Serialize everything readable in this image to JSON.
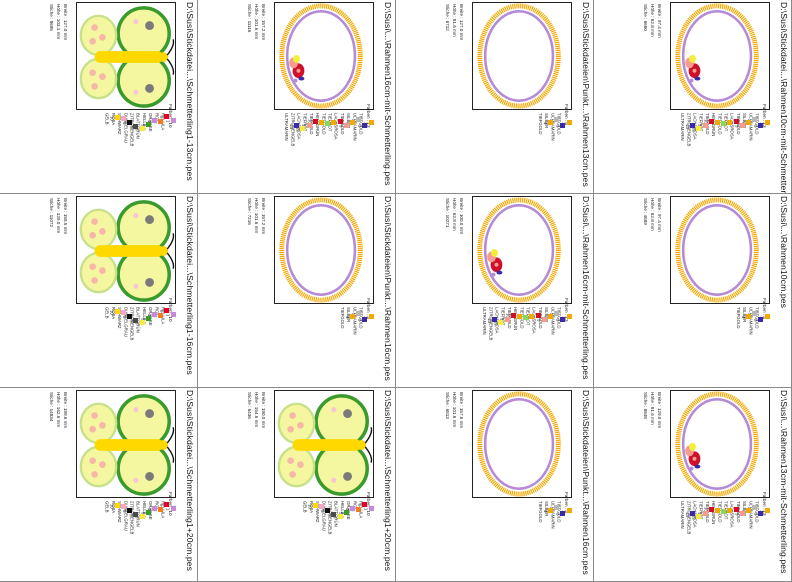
{
  "cards": [
    {
      "title": "D:\\Susi\\Stickdatei...\\Rahmen10cm-mit-Schmetterling.pes",
      "info": [
        "Breite : 97.4 mm",
        "Höhe : 62.8 mm",
        "Stiche : 6680"
      ],
      "design": "oval-butterfly",
      "colors_label": "Farben : 13",
      "legend": [
        {
          "num": "1",
          "name": "TIEFGOLD",
          "color": "#f2a900"
        },
        {
          "num": "2",
          "name": "ULTRAMARIN",
          "color": "#3b2aa8"
        },
        {
          "num": "3",
          "name": "SILBER",
          "color": "#b8b8b8"
        },
        {
          "num": "4",
          "name": "TIEFGOLD",
          "color": "#f2a900"
        },
        {
          "num": "5",
          "name": "LACHSROSA",
          "color": "#f59c8f"
        },
        {
          "num": "6",
          "name": "TIEFROT",
          "color": "#d0102a"
        },
        {
          "num": "7",
          "name": "TIEFGOLD",
          "color": "#f2a900"
        },
        {
          "num": "8",
          "name": "HELLGRÜN",
          "color": "#86d95a"
        },
        {
          "num": "9",
          "name": "TIEFGOLD",
          "color": "#f2a900"
        },
        {
          "num": "10",
          "name": "TIEFROT",
          "color": "#d0102a"
        },
        {
          "num": "11",
          "name": "LACHSROSA",
          "color": "#f59c8f"
        },
        {
          "num": "12",
          "name": "ZITRONENGELB",
          "color": "#f4ee3a"
        },
        {
          "num": "13",
          "name": "ULTRAMARIN",
          "color": "#3b2aa8"
        }
      ]
    },
    {
      "title": "D:\\Susi\\Stickdateien\\Punkt...\\Rahmen13cm.pes",
      "info": [
        "Breite : 127.0 mm",
        "Höhe : 81.6 mm",
        "Stiche : 6712"
      ],
      "design": "oval",
      "colors_label": "Farben : 4",
      "legend": [
        {
          "num": "1",
          "name": "TIEFGOLD",
          "color": "#f2a900"
        },
        {
          "num": "2",
          "name": "ULTRAMARIN",
          "color": "#3b2aa8"
        },
        {
          "num": "3",
          "name": "SILBER",
          "color": "#b8b8b8"
        },
        {
          "num": "4",
          "name": "TIEFGOLD",
          "color": "#f2a900"
        }
      ]
    },
    {
      "title": "D:\\Susi\\...\\Rahmen16cm-mit-Schmetterling.pes",
      "info": [
        "Breite : 157.2 mm",
        "Höhe : 101.6 mm",
        "Stiche : 11116"
      ],
      "design": "oval-butterfly",
      "colors_label": "Farben : 13",
      "legend": [
        {
          "num": "1",
          "name": "TIEFGOLD",
          "color": "#f2a900"
        },
        {
          "num": "2",
          "name": "ULTRAMARIN",
          "color": "#3b2aa8"
        },
        {
          "num": "3",
          "name": "SILBER",
          "color": "#b8b8b8"
        },
        {
          "num": "4",
          "name": "TIEFGOLD",
          "color": "#f2a900"
        },
        {
          "num": "5",
          "name": "LACHSROSA",
          "color": "#f59c8f"
        },
        {
          "num": "6",
          "name": "TIEFROT",
          "color": "#d0102a"
        },
        {
          "num": "7",
          "name": "TIEFGOLD",
          "color": "#f2a900"
        },
        {
          "num": "8",
          "name": "HELLGRÜN",
          "color": "#86d95a"
        },
        {
          "num": "9",
          "name": "TIEFGOLD",
          "color": "#f2a900"
        },
        {
          "num": "10",
          "name": "TIEFROT",
          "color": "#d0102a"
        },
        {
          "num": "11",
          "name": "LACHSROSA",
          "color": "#f59c8f"
        },
        {
          "num": "12",
          "name": "ZITRONENGELB",
          "color": "#f4ee3a"
        },
        {
          "num": "13",
          "name": "ULTRAMARIN",
          "color": "#3b2aa8"
        }
      ]
    },
    {
      "title": "D:\\Susi\\Stickdatei...\\Schmetterling1-13cm.pes",
      "info": [
        "Breite : 127.0 mm",
        "Höhe : 103.1 mm",
        "Stiche : 8695"
      ],
      "design": "butterfly",
      "colors_label": "Farben : 10",
      "legend": [
        {
          "num": "1",
          "name": "HELLILA",
          "color": "#c88ad8"
        },
        {
          "num": "2",
          "name": "ROT",
          "color": "#e4002b"
        },
        {
          "num": "3",
          "name": "ORANGE",
          "color": "#f47c20"
        },
        {
          "num": "4",
          "name": "HELLILA",
          "color": "#c88ad8"
        },
        {
          "num": "5",
          "name": "BLATTGRÜN",
          "color": "#3a9a2c"
        },
        {
          "num": "6",
          "name": "ZITRONENGELB",
          "color": "#f4ee3a"
        },
        {
          "num": "7",
          "name": "DUNKELGRAU",
          "color": "#4a4a4a"
        },
        {
          "num": "8",
          "name": "SCHWARZ",
          "color": "#111111"
        },
        {
          "num": "9",
          "name": "ROSA",
          "color": "#f7a6c8"
        },
        {
          "num": "10",
          "name": "GELB",
          "color": "#ffd800"
        }
      ]
    },
    {
      "title": "D:\\Susi\\...\\Rahmen10cm.pes",
      "info": [
        "Breite : 97.4 mm",
        "Höhe : 62.8 mm",
        "Stiche : 4689"
      ],
      "design": "oval",
      "colors_label": "Farben : 4",
      "legend": [
        {
          "num": "1",
          "name": "TIEFGOLD",
          "color": "#f2a900"
        },
        {
          "num": "2",
          "name": "ULTRAMARIN",
          "color": "#3b2aa8"
        },
        {
          "num": "3",
          "name": "SILBER",
          "color": "#b8b8b8"
        },
        {
          "num": "4",
          "name": "TIEFGOLD",
          "color": "#f2a900"
        }
      ]
    },
    {
      "title": "D:\\Susi\\...\\Rahmen16cm-mit-Schmetterling.pes",
      "info": [
        "Breite : 100.0 mm",
        "Höhe : 62.8 mm",
        "Stiche : 10271"
      ],
      "design": "oval-butterfly",
      "colors_label": "Farben : 13",
      "legend": [
        {
          "num": "1",
          "name": "TIEFGOLD",
          "color": "#f2a900"
        },
        {
          "num": "2",
          "name": "ULTRAMARIN",
          "color": "#3b2aa8"
        },
        {
          "num": "3",
          "name": "SILBER",
          "color": "#b8b8b8"
        },
        {
          "num": "4",
          "name": "TIEFGOLD",
          "color": "#f2a900"
        },
        {
          "num": "5",
          "name": "LACHSROSA",
          "color": "#f59c8f"
        },
        {
          "num": "6",
          "name": "TIEFROT",
          "color": "#d0102a"
        },
        {
          "num": "7",
          "name": "TIEFGOLD",
          "color": "#f2a900"
        },
        {
          "num": "8",
          "name": "HELLGRÜN",
          "color": "#86d95a"
        },
        {
          "num": "9",
          "name": "TIEFGOLD",
          "color": "#f2a900"
        },
        {
          "num": "10",
          "name": "TIEFROT",
          "color": "#d0102a"
        },
        {
          "num": "11",
          "name": "LACHSROSA",
          "color": "#f59c8f"
        },
        {
          "num": "12",
          "name": "ZITRONENGELB",
          "color": "#f4ee3a"
        },
        {
          "num": "13",
          "name": "ULTRAMARIN",
          "color": "#3b2aa8"
        }
      ]
    },
    {
      "title": "D:\\Susi\\Stickdateien\\Punkt...\\Rahmen16cm.pes",
      "info": [
        "Breite : 157.2 mm",
        "Höhe : 101.6 mm",
        "Stiche : 7216"
      ],
      "design": "oval",
      "colors_label": "Farben : 4",
      "legend": [
        {
          "num": "1",
          "name": "TIEFGOLD",
          "color": "#f2a900"
        },
        {
          "num": "2",
          "name": "ULTRAMARIN",
          "color": "#3b2aa8"
        },
        {
          "num": "3",
          "name": "SILBER",
          "color": "#b8b8b8"
        },
        {
          "num": "4",
          "name": "TIEFGOLD",
          "color": "#f2a900"
        }
      ]
    },
    {
      "title": "D:\\Susi\\Stickdatei...\\Schmetterling1-16cm.pes",
      "info": [
        "Breite : 158.5 mm",
        "Höhe : 129.0 mm",
        "Stiche : 11072"
      ],
      "design": "butterfly",
      "colors_label": "Farben : 10",
      "legend": [
        {
          "num": "1",
          "name": "HELLILA",
          "color": "#c88ad8"
        },
        {
          "num": "2",
          "name": "ROT",
          "color": "#e4002b"
        },
        {
          "num": "3",
          "name": "ORANGE",
          "color": "#f47c20"
        },
        {
          "num": "4",
          "name": "HELLILA",
          "color": "#c88ad8"
        },
        {
          "num": "5",
          "name": "BLATTGRÜN",
          "color": "#3a9a2c"
        },
        {
          "num": "6",
          "name": "ZITRONENGELB",
          "color": "#f4ee3a"
        },
        {
          "num": "7",
          "name": "DUNKELGRAU",
          "color": "#4a4a4a"
        },
        {
          "num": "8",
          "name": "SCHWARZ",
          "color": "#111111"
        },
        {
          "num": "9",
          "name": "ROSA",
          "color": "#f7a6c8"
        },
        {
          "num": "10",
          "name": "GELB",
          "color": "#ffd800"
        }
      ]
    },
    {
      "title": "D:\\Susi\\...\\Rahmen13cm-mit-Schmetterling.pes",
      "info": [
        "Breite : 129.0 mm",
        "Höhe : 81.6 mm",
        "Stiche : 8848"
      ],
      "design": "oval-butterfly",
      "colors_label": "Farben : 13",
      "legend": [
        {
          "num": "1",
          "name": "TIEFGOLD",
          "color": "#f2a900"
        },
        {
          "num": "2",
          "name": "ULTRAMARIN",
          "color": "#3b2aa8"
        },
        {
          "num": "3",
          "name": "SILBER",
          "color": "#b8b8b8"
        },
        {
          "num": "4",
          "name": "TIEFGOLD",
          "color": "#f2a900"
        },
        {
          "num": "5",
          "name": "LACHSROSA",
          "color": "#f59c8f"
        },
        {
          "num": "6",
          "name": "TIEFROT",
          "color": "#d0102a"
        },
        {
          "num": "7",
          "name": "TIEFGOLD",
          "color": "#f2a900"
        },
        {
          "num": "8",
          "name": "HELLGRÜN",
          "color": "#86d95a"
        },
        {
          "num": "9",
          "name": "TIEFGOLD",
          "color": "#f2a900"
        },
        {
          "num": "10",
          "name": "TIEFROT",
          "color": "#d0102a"
        },
        {
          "num": "11",
          "name": "LACHSROSA",
          "color": "#f59c8f"
        },
        {
          "num": "12",
          "name": "ZITRONENGELB",
          "color": "#f4ee3a"
        },
        {
          "num": "13",
          "name": "ULTRAMARIN",
          "color": "#3b2aa8"
        }
      ]
    },
    {
      "title": "D:\\Susi\\Stickdateien\\Punkt...\\Rahmen16cm.pes",
      "info": [
        "Breite : 157.6 mm",
        "Höhe : 101.6 mm",
        "Stiche : 6813"
      ],
      "design": "oval",
      "colors_label": "Farben : 4",
      "legend": [
        {
          "num": "1",
          "name": "TIEFGOLD",
          "color": "#f2a900"
        },
        {
          "num": "2",
          "name": "ULTRAMARIN",
          "color": "#3b2aa8"
        },
        {
          "num": "3",
          "name": "SILBER",
          "color": "#b8b8b8"
        },
        {
          "num": "4",
          "name": "TIEFGOLD",
          "color": "#f2a900"
        }
      ]
    },
    {
      "title": "D:\\Susi\\Stickdatei...\\Schmetterling1+20cm.pes",
      "info": [
        "Breite : 190.0 mm",
        "Höhe : 154.6 mm",
        "Stiche : 6436"
      ],
      "design": "butterfly",
      "colors_label": "Farben : 10",
      "legend": [
        {
          "num": "1",
          "name": "HELLILA",
          "color": "#c88ad8"
        },
        {
          "num": "2",
          "name": "ROT",
          "color": "#e4002b"
        },
        {
          "num": "3",
          "name": "ORANGE",
          "color": "#f47c20"
        },
        {
          "num": "4",
          "name": "HELLILA",
          "color": "#c88ad8"
        },
        {
          "num": "5",
          "name": "BLATTGRÜN",
          "color": "#3a9a2c"
        },
        {
          "num": "6",
          "name": "ZITRONENGELB",
          "color": "#f4ee3a"
        },
        {
          "num": "7",
          "name": "DUNKELGRAU",
          "color": "#4a4a4a"
        },
        {
          "num": "8",
          "name": "SCHWARZ",
          "color": "#111111"
        },
        {
          "num": "9",
          "name": "ROSA",
          "color": "#f7a6c8"
        },
        {
          "num": "10",
          "name": "GELB",
          "color": "#ffd800"
        }
      ]
    },
    {
      "title": "D:\\Susi\\Stickdatei...\\Schmetterling1+20cm.pes",
      "info": [
        "Breite : 199.6 mm",
        "Höhe : 162.6 mm",
        "Stiche : 14834"
      ],
      "design": "butterfly",
      "colors_label": "Farben : 10",
      "legend": [
        {
          "num": "1",
          "name": "HELLILA",
          "color": "#c88ad8"
        },
        {
          "num": "2",
          "name": "ROT",
          "color": "#e4002b"
        },
        {
          "num": "3",
          "name": "ORANGE",
          "color": "#f47c20"
        },
        {
          "num": "4",
          "name": "HELLILA",
          "color": "#c88ad8"
        },
        {
          "num": "5",
          "name": "BLATTGRÜN",
          "color": "#3a9a2c"
        },
        {
          "num": "6",
          "name": "ZITRONENGELB",
          "color": "#f4ee3a"
        },
        {
          "num": "7",
          "name": "DUNKELGRAU",
          "color": "#4a4a4a"
        },
        {
          "num": "8",
          "name": "SCHWARZ",
          "color": "#111111"
        },
        {
          "num": "9",
          "name": "ROSA",
          "color": "#f7a6c8"
        },
        {
          "num": "10",
          "name": "GELB",
          "color": "#ffd800"
        }
      ]
    }
  ]
}
